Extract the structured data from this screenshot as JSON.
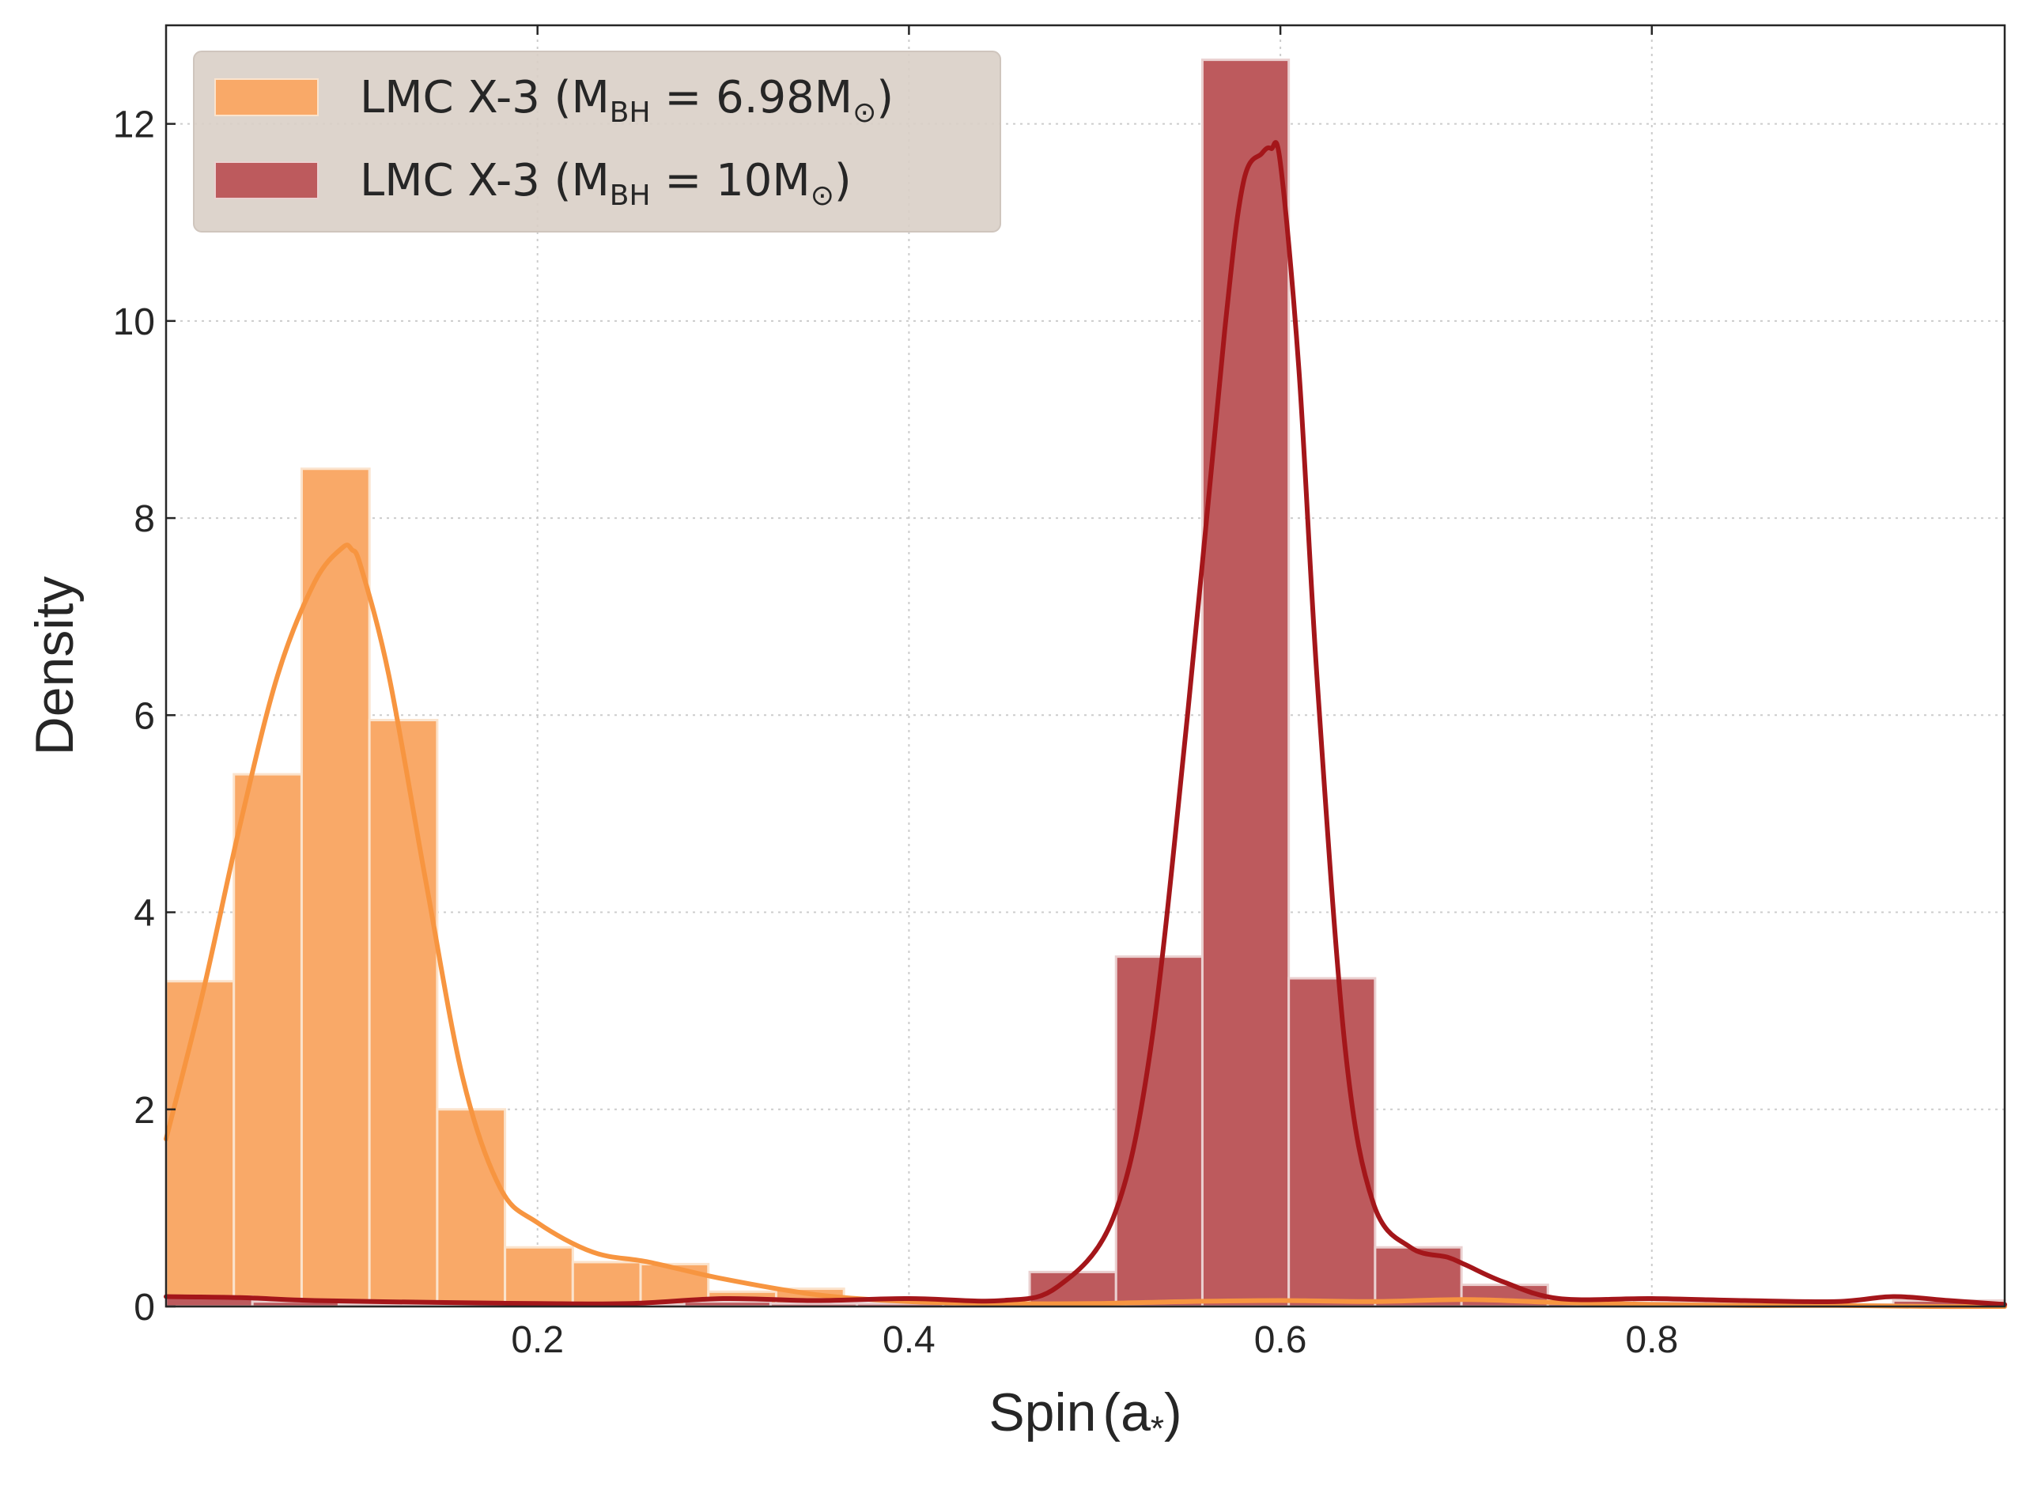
{
  "chart_data": {
    "type": "histogram",
    "xlabel": "Spin",
    "xlabel_symbol": "a",
    "xlabel_sub": "*",
    "ylabel": "Density",
    "xlim": [
      0.0,
      0.99
    ],
    "ylim": [
      0,
      13
    ],
    "xticks": [
      0.2,
      0.4,
      0.6,
      0.8
    ],
    "xtick_labels": [
      "0.2",
      "0.4",
      "0.6",
      "0.8"
    ],
    "yticks": [
      0,
      2,
      4,
      6,
      8,
      10,
      12
    ],
    "ytick_labels": [
      "0",
      "2",
      "4",
      "6",
      "8",
      "10",
      "12"
    ],
    "grid": true,
    "legend_position": "top-left",
    "series": [
      {
        "name": "LMC X-3 (M_BH = 6.98M_sun)",
        "legend_prefix": "LMC X-3 (M",
        "legend_sub": "BH",
        "legend_mid": " = 6.98M",
        "legend_sym": "⊙",
        "legend_suffix": ")",
        "bar_color": "#f9a968",
        "bar_edge": "#fbe3cc",
        "line_color": "#f79540",
        "bin_edges": [
          0.0,
          0.0365,
          0.073,
          0.1095,
          0.146,
          0.1825,
          0.219,
          0.2555,
          0.292,
          0.3285,
          0.365
        ],
        "values": [
          3.3,
          5.4,
          8.5,
          5.95,
          2.0,
          0.6,
          0.45,
          0.43,
          0.15,
          0.18
        ],
        "kde_x": [
          0.0,
          0.02,
          0.04,
          0.06,
          0.08,
          0.095,
          0.1,
          0.105,
          0.12,
          0.14,
          0.16,
          0.18,
          0.2,
          0.23,
          0.26,
          0.3,
          0.35,
          0.4,
          0.45,
          0.5,
          0.55,
          0.6,
          0.65,
          0.7,
          0.75,
          0.8,
          0.85,
          0.9,
          0.95,
          0.99
        ],
        "kde_y": [
          1.7,
          3.2,
          4.9,
          6.4,
          7.35,
          7.7,
          7.68,
          7.5,
          6.4,
          4.3,
          2.3,
          1.2,
          0.85,
          0.55,
          0.45,
          0.28,
          0.12,
          0.05,
          0.03,
          0.03,
          0.05,
          0.06,
          0.05,
          0.07,
          0.04,
          0.02,
          0.01,
          0.01,
          0.0,
          0.0
        ]
      },
      {
        "name": "LMC X-3 (M_BH = 10M_sun)",
        "legend_prefix": "LMC X-3 (M",
        "legend_sub": "BH",
        "legend_mid": " = 10M",
        "legend_sym": "⊙",
        "legend_suffix": ")",
        "bar_color": "#bd5a5d",
        "bar_edge": "#ead0d0",
        "line_color": "#a4161a",
        "bin_edges": [
          0.0,
          0.0465,
          0.093,
          0.1395,
          0.186,
          0.2325,
          0.279,
          0.3255,
          0.372,
          0.4185,
          0.465,
          0.5115,
          0.558,
          0.6045,
          0.651,
          0.6975,
          0.744,
          0.7905,
          0.837,
          0.8835,
          0.93,
          0.99
        ],
        "values": [
          0.1,
          0.05,
          0.02,
          0.02,
          0.02,
          0.02,
          0.05,
          0.03,
          0.03,
          0.03,
          0.35,
          3.55,
          12.65,
          3.33,
          0.6,
          0.22,
          0.03,
          0.04,
          0.03,
          0.02,
          0.06
        ],
        "kde_x": [
          0.0,
          0.04,
          0.08,
          0.15,
          0.2,
          0.25,
          0.3,
          0.35,
          0.4,
          0.45,
          0.48,
          0.51,
          0.53,
          0.55,
          0.57,
          0.58,
          0.59,
          0.595,
          0.6,
          0.61,
          0.62,
          0.635,
          0.65,
          0.67,
          0.69,
          0.7,
          0.72,
          0.75,
          0.8,
          0.85,
          0.9,
          0.93,
          0.96,
          0.99
        ],
        "kde_y": [
          0.1,
          0.09,
          0.06,
          0.04,
          0.03,
          0.03,
          0.08,
          0.06,
          0.08,
          0.06,
          0.2,
          0.9,
          2.6,
          6.0,
          9.9,
          11.4,
          11.7,
          11.75,
          11.6,
          9.5,
          6.3,
          2.6,
          1.05,
          0.6,
          0.5,
          0.42,
          0.25,
          0.08,
          0.08,
          0.06,
          0.05,
          0.1,
          0.06,
          0.02
        ]
      }
    ]
  }
}
